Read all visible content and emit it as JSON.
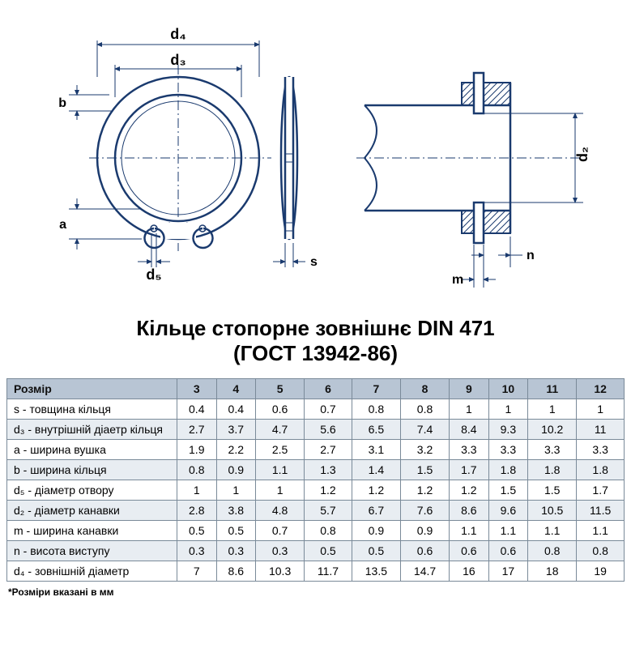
{
  "title": {
    "line1": "Кільце стопорне зовнішнє DIN 471",
    "line2": "(ГОСТ 13942-86)"
  },
  "diagram": {
    "labels": {
      "d4": "d₄",
      "d3": "d₃",
      "d5": "d₅",
      "d2": "d₂",
      "a": "a",
      "b": "b",
      "s": "s",
      "n": "n",
      "m": "m"
    },
    "colors": {
      "stroke": "#1a3a6e",
      "hatch": "#1a3a6e",
      "centerline": "#1a3a6e",
      "background": "#ffffff"
    },
    "line_width_main": 2,
    "line_width_thin": 1
  },
  "table": {
    "header_label": "Розмір",
    "header_bg": "#b8c5d4",
    "row_alt_bg": "#e8edf2",
    "border_color": "#7a8a99",
    "columns": [
      "3",
      "4",
      "5",
      "6",
      "7",
      "8",
      "9",
      "10",
      "11",
      "12"
    ],
    "rows": [
      {
        "label": "s - товщина кільця",
        "values": [
          "0.4",
          "0.4",
          "0.6",
          "0.7",
          "0.8",
          "0.8",
          "1",
          "1",
          "1",
          "1"
        ]
      },
      {
        "label": "d₃ - внутрішній діаетр кільця",
        "values": [
          "2.7",
          "3.7",
          "4.7",
          "5.6",
          "6.5",
          "7.4",
          "8.4",
          "9.3",
          "10.2",
          "11"
        ]
      },
      {
        "label": "a - ширина вушка",
        "values": [
          "1.9",
          "2.2",
          "2.5",
          "2.7",
          "3.1",
          "3.2",
          "3.3",
          "3.3",
          "3.3",
          "3.3"
        ]
      },
      {
        "label": "b - ширина кільця",
        "values": [
          "0.8",
          "0.9",
          "1.1",
          "1.3",
          "1.4",
          "1.5",
          "1.7",
          "1.8",
          "1.8",
          "1.8"
        ]
      },
      {
        "label": "d₅ - діаметр отвору",
        "values": [
          "1",
          "1",
          "1",
          "1.2",
          "1.2",
          "1.2",
          "1.2",
          "1.5",
          "1.5",
          "1.7"
        ]
      },
      {
        "label": "d₂ - діаметр канавки",
        "values": [
          "2.8",
          "3.8",
          "4.8",
          "5.7",
          "6.7",
          "7.6",
          "8.6",
          "9.6",
          "10.5",
          "11.5"
        ]
      },
      {
        "label": "m - ширина канавки",
        "values": [
          "0.5",
          "0.5",
          "0.7",
          "0.8",
          "0.9",
          "0.9",
          "1.1",
          "1.1",
          "1.1",
          "1.1"
        ]
      },
      {
        "label": "n - висота виступу",
        "values": [
          "0.3",
          "0.3",
          "0.3",
          "0.5",
          "0.5",
          "0.6",
          "0.6",
          "0.6",
          "0.8",
          "0.8"
        ]
      },
      {
        "label": "d₄ - зовнішній діаметр",
        "values": [
          "7",
          "8.6",
          "10.3",
          "11.7",
          "13.5",
          "14.7",
          "16",
          "17",
          "18",
          "19"
        ]
      }
    ]
  },
  "footnote": "*Розміри вказані в мм"
}
